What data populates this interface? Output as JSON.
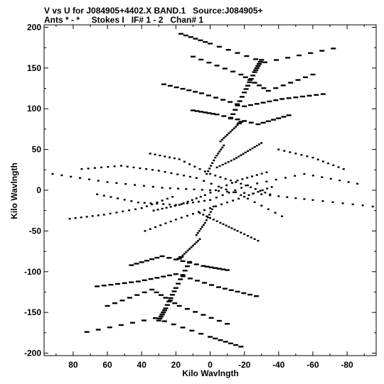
{
  "header": {
    "title_line1": "V vs U for J084905+4402.X BAND.1   Source:J084905+",
    "title_line2": "Ants * - *     Stokes I   IF# 1 - 2   Chan# 1"
  },
  "chart_data": {
    "type": "scatter",
    "xlabel": "Kilo Wavlngth",
    "ylabel": "Kilo Wavlngth",
    "xlim": [
      97,
      -97
    ],
    "ylim": [
      -203,
      203
    ],
    "x_reversed": true,
    "x_ticks": [
      80,
      60,
      40,
      20,
      0,
      -20,
      -40,
      -60,
      -80
    ],
    "y_ticks": [
      200,
      150,
      100,
      50,
      0,
      -50,
      -100,
      -150,
      -200
    ],
    "marker_color": "#000000",
    "grid": false,
    "track_pattern": {
      "description_free": true,
      "uv_tracks": [
        {
          "x": [
            17,
            0,
            -32,
            -72
          ],
          "y": [
            192,
            180,
            157,
            174
          ]
        },
        {
          "x": [
            10,
            -18,
            -34,
            -60
          ],
          "y": [
            164,
            142,
            122,
            142
          ]
        },
        {
          "x": [
            27,
            5,
            -20,
            -42,
            -66
          ],
          "y": [
            130,
            119,
            103,
            112,
            118
          ]
        },
        {
          "x": [
            10,
            -4,
            -28,
            -46
          ],
          "y": [
            98,
            93,
            81,
            92
          ]
        },
        {
          "x": [
            -12,
            -20,
            -26,
            -30
          ],
          "y": [
            88,
            120,
            145,
            160
          ]
        },
        {
          "x": [
            -6,
            -12,
            -18
          ],
          "y": [
            60,
            72,
            84
          ]
        },
        {
          "x": [
            92,
            60,
            28,
            0,
            -30,
            -60,
            -95
          ],
          "y": [
            20,
            10,
            3,
            0,
            -5,
            -12,
            -20
          ]
        },
        {
          "x": [
            75,
            52,
            30,
            8,
            -18,
            -42
          ],
          "y": [
            26,
            30,
            24,
            15,
            -6,
            -32
          ]
        },
        {
          "x": [
            66,
            42,
            20,
            0,
            -22,
            -55,
            -86
          ],
          "y": [
            -5,
            -15,
            -18,
            -12,
            6,
            20,
            8
          ]
        },
        {
          "x": [
            35,
            18,
            0,
            -18,
            -35
          ],
          "y": [
            45,
            38,
            20,
            8,
            -5
          ]
        },
        {
          "x": [
            38,
            20,
            0,
            -20,
            -36
          ],
          "y": [
            -50,
            -36,
            -22,
            -8,
            4
          ]
        },
        {
          "x": [
            33,
            18,
            3,
            -16,
            -33
          ],
          "y": [
            -25,
            -18,
            -6,
            12,
            22
          ]
        },
        {
          "x": [
            -4,
            -14,
            -22,
            -30
          ],
          "y": [
            28,
            38,
            48,
            58
          ]
        },
        {
          "x": [
            6,
            -6,
            -16,
            -28
          ],
          "y": [
            -28,
            -40,
            -50,
            -62
          ]
        },
        {
          "x": [
            82,
            62,
            40,
            22
          ],
          "y": [
            -35,
            -30,
            -22,
            -8
          ]
        },
        {
          "x": [
            -40,
            -60,
            -78
          ],
          "y": [
            50,
            40,
            26
          ]
        },
        {
          "x": [
            -18,
            0,
            32,
            72
          ],
          "y": [
            -192,
            -180,
            -157,
            -174
          ]
        },
        {
          "x": [
            -10,
            18,
            34,
            60
          ],
          "y": [
            -164,
            -142,
            -122,
            -142
          ]
        },
        {
          "x": [
            -27,
            -5,
            20,
            42,
            66
          ],
          "y": [
            -130,
            -119,
            -103,
            -112,
            -118
          ]
        },
        {
          "x": [
            -10,
            4,
            28,
            46
          ],
          "y": [
            -98,
            -93,
            -81,
            -92
          ]
        },
        {
          "x": [
            12,
            20,
            26,
            30
          ],
          "y": [
            -88,
            -120,
            -145,
            -160
          ]
        },
        {
          "x": [
            6,
            12,
            18
          ],
          "y": [
            -60,
            -72,
            -84
          ]
        },
        {
          "x": [
            -2,
            3,
            8
          ],
          "y": [
            -20,
            -40,
            -55
          ]
        },
        {
          "x": [
            2,
            -3,
            -8
          ],
          "y": [
            20,
            40,
            55
          ]
        }
      ]
    }
  }
}
